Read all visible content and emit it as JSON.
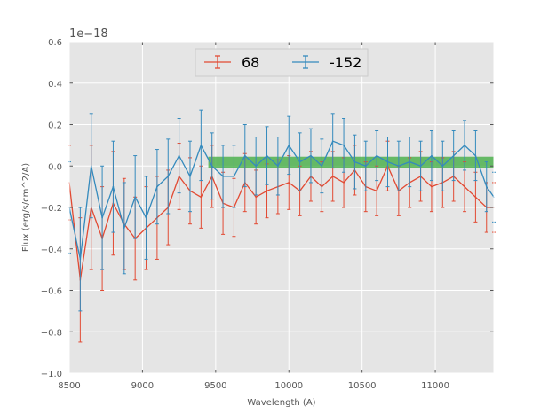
{
  "chart_data": {
    "type": "line",
    "title": "",
    "xlabel": "Wavelength (A)",
    "ylabel": "Flux (erg/s/cm^2/A)",
    "offset_label": "1e−18",
    "xlim": [
      8500,
      11400
    ],
    "ylim": [
      -1.0,
      0.6
    ],
    "x_ticks": [
      8500,
      9000,
      9500,
      10000,
      10500,
      11000
    ],
    "y_ticks": [
      -1.0,
      -0.8,
      -0.6,
      -0.4,
      -0.2,
      0.0,
      0.2,
      0.4,
      0.6
    ],
    "x_tick_labels": [
      "8500",
      "9000",
      "9500",
      "10000",
      "10500",
      "11000"
    ],
    "y_tick_labels": [
      "−1.0",
      "−0.8",
      "−0.6",
      "−0.4",
      "−0.2",
      "0.0",
      "0.2",
      "0.4",
      "0.6"
    ],
    "grid": true,
    "legend_position": "top-center",
    "band": {
      "x_range": [
        9450,
        11400
      ],
      "y_range": [
        -0.01,
        0.045
      ],
      "color": "#3aaa3a"
    },
    "series": [
      {
        "name": "68",
        "color": "#e24a33",
        "x": [
          8500,
          8575,
          8650,
          8725,
          8800,
          8875,
          8950,
          9025,
          9100,
          9175,
          9250,
          9325,
          9400,
          9475,
          9550,
          9625,
          9700,
          9775,
          9850,
          9925,
          10000,
          10075,
          10150,
          10225,
          10300,
          10375,
          10450,
          10525,
          10600,
          10675,
          10750,
          10825,
          10900,
          10975,
          11050,
          11125,
          11200,
          11275,
          11350,
          11400
        ],
        "values": [
          -0.08,
          -0.55,
          -0.2,
          -0.35,
          -0.18,
          -0.28,
          -0.35,
          -0.3,
          -0.25,
          -0.2,
          -0.05,
          -0.12,
          -0.15,
          -0.05,
          -0.18,
          -0.2,
          -0.08,
          -0.15,
          -0.12,
          -0.1,
          -0.08,
          -0.12,
          -0.05,
          -0.1,
          -0.05,
          -0.08,
          -0.02,
          -0.1,
          -0.12,
          0.0,
          -0.12,
          -0.08,
          -0.05,
          -0.1,
          -0.08,
          -0.05,
          -0.1,
          -0.15,
          -0.2,
          -0.2
        ],
        "errors": [
          0.18,
          0.3,
          0.3,
          0.25,
          0.25,
          0.22,
          0.2,
          0.2,
          0.2,
          0.18,
          0.16,
          0.16,
          0.15,
          0.15,
          0.15,
          0.14,
          0.14,
          0.13,
          0.13,
          0.13,
          0.13,
          0.12,
          0.12,
          0.12,
          0.12,
          0.12,
          0.12,
          0.12,
          0.12,
          0.12,
          0.12,
          0.12,
          0.12,
          0.12,
          0.12,
          0.12,
          0.12,
          0.12,
          0.12,
          0.12
        ]
      },
      {
        "name": "-152",
        "color": "#348abd",
        "x": [
          8500,
          8575,
          8650,
          8725,
          8800,
          8875,
          8950,
          9025,
          9100,
          9175,
          9250,
          9325,
          9400,
          9475,
          9550,
          9625,
          9700,
          9775,
          9850,
          9925,
          10000,
          10075,
          10150,
          10225,
          10300,
          10375,
          10450,
          10525,
          10600,
          10675,
          10750,
          10825,
          10900,
          10975,
          11050,
          11125,
          11200,
          11275,
          11350,
          11400
        ],
        "values": [
          -0.2,
          -0.45,
          0.0,
          -0.25,
          -0.1,
          -0.3,
          -0.15,
          -0.25,
          -0.1,
          -0.05,
          0.05,
          -0.05,
          0.1,
          0.0,
          -0.05,
          -0.05,
          0.05,
          0.0,
          0.05,
          0.0,
          0.1,
          0.02,
          0.05,
          0.0,
          0.12,
          0.1,
          0.02,
          0.0,
          0.05,
          0.02,
          0.0,
          0.02,
          0.0,
          0.05,
          0.0,
          0.05,
          0.1,
          0.05,
          -0.1,
          -0.15
        ],
        "errors": [
          0.22,
          0.25,
          0.25,
          0.25,
          0.22,
          0.22,
          0.2,
          0.2,
          0.18,
          0.18,
          0.18,
          0.17,
          0.17,
          0.16,
          0.15,
          0.15,
          0.15,
          0.14,
          0.14,
          0.14,
          0.14,
          0.14,
          0.13,
          0.13,
          0.13,
          0.13,
          0.13,
          0.12,
          0.12,
          0.12,
          0.12,
          0.12,
          0.12,
          0.12,
          0.12,
          0.12,
          0.12,
          0.12,
          0.12,
          0.12
        ]
      }
    ]
  }
}
